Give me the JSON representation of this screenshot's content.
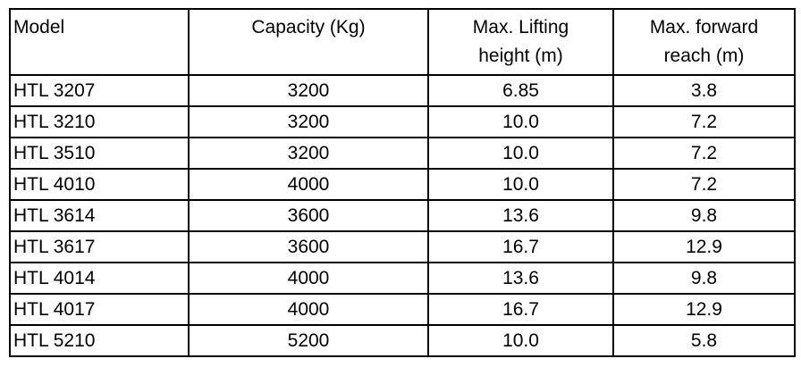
{
  "table": {
    "header": [
      [
        "Model"
      ],
      [
        "Capacity (Kg)"
      ],
      [
        "Max. Lifting",
        "height (m)"
      ],
      [
        "Max. forward",
        "reach (m)"
      ]
    ],
    "rows": [
      [
        "HTL 3207",
        "3200",
        "6.85",
        "3.8"
      ],
      [
        "HTL 3210",
        "3200",
        "10.0",
        "7.2"
      ],
      [
        "HTL 3510",
        "3200",
        "10.0",
        "7.2"
      ],
      [
        "HTL 4010",
        "4000",
        "10.0",
        "7.2"
      ],
      [
        "HTL 3614",
        "3600",
        "13.6",
        "9.8"
      ],
      [
        "HTL 3617",
        "3600",
        "16.7",
        "12.9"
      ],
      [
        "HTL 4014",
        "4000",
        "13.6",
        "9.8"
      ],
      [
        "HTL 4017",
        "4000",
        "16.7",
        "12.9"
      ],
      [
        "HTL 5210",
        "5200",
        "10.0",
        "5.8"
      ]
    ]
  }
}
